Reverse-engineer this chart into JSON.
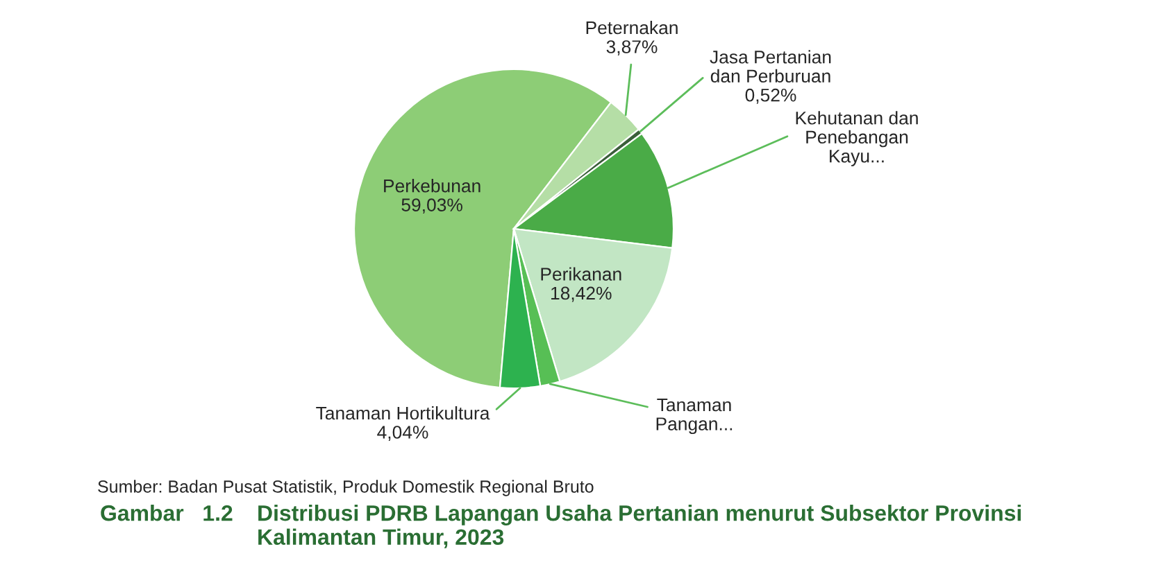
{
  "chart_data": {
    "type": "pie",
    "title": "Distribusi PDRB Lapangan Usaha Pertanian menurut Subsektor Provinsi\nKalimantan Timur, 2023",
    "categories": [
      "Perkebunan",
      "Peternakan",
      "Jasa Pertanian\ndan Perburuan",
      "Kehutanan dan\nPenebangan\nKayu...",
      "Perikanan",
      "Tanaman\nPangan...",
      "Tanaman Hortikultura"
    ],
    "values": [
      59.03,
      3.87,
      0.52,
      12.12,
      18.42,
      2.0,
      4.04
    ],
    "value_labels": [
      "59,03%",
      "3,87%",
      "0,52%",
      null,
      "18,42%",
      null,
      "4,04%"
    ],
    "colors": [
      "#8dcd76",
      "#b5dea6",
      "#3b5e3a",
      "#4aab47",
      "#c2e6c4",
      "#57bf55",
      "#2db24f"
    ],
    "annotations": [
      "Sumber: Badan Pusat Statistik, Produk Domestik Regional Bruto",
      "Gambar   1.2"
    ]
  }
}
